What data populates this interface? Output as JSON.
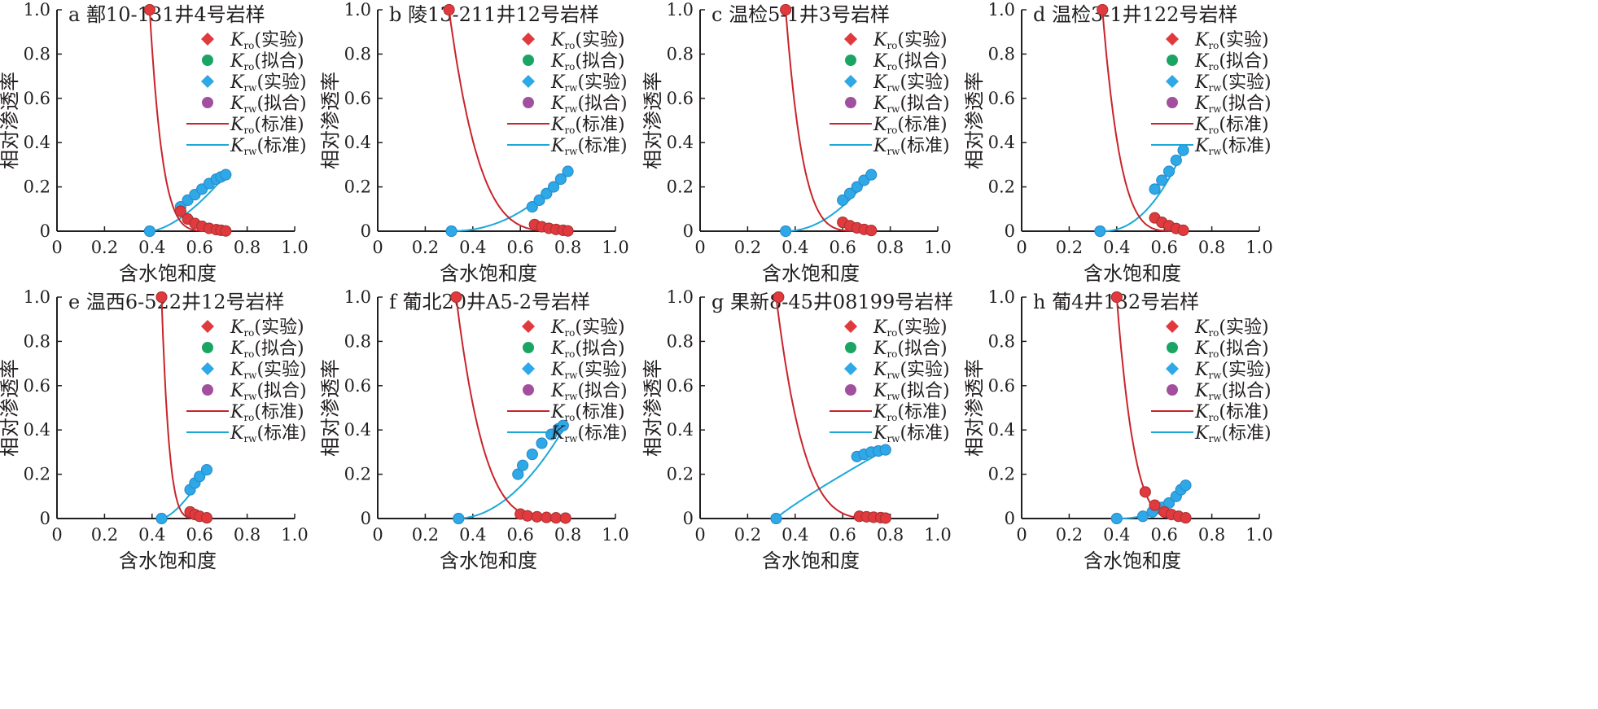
{
  "figure": {
    "xlabel": "含水饱和度",
    "ylabel": "相对渗透率",
    "xticks": [
      "0",
      "0.2",
      "0.4",
      "0.6",
      "0.8",
      "1.0"
    ],
    "yticks": [
      "0",
      "0.2",
      "0.4",
      "0.6",
      "0.8",
      "1.0"
    ],
    "legend": [
      {
        "sym": "K",
        "sub": "ro",
        "note": "(实验)",
        "kind": "diamond",
        "color": "#e03a3e"
      },
      {
        "sym": "K",
        "sub": "ro",
        "note": "(拟合)",
        "kind": "circle",
        "color": "#1aa564"
      },
      {
        "sym": "K",
        "sub": "rw",
        "note": "(实验)",
        "kind": "diamond",
        "color": "#2ea8e6"
      },
      {
        "sym": "K",
        "sub": "rw",
        "note": "(拟合)",
        "kind": "circle",
        "color": "#a24f9e"
      },
      {
        "sym": "K",
        "sub": "ro",
        "note": "(标准)",
        "kind": "line",
        "color": "#c8242b"
      },
      {
        "sym": "K",
        "sub": "rw",
        "note": "(标准)",
        "kind": "line",
        "color": "#1ba8d9"
      }
    ]
  },
  "chart_data": [
    {
      "type": "scatter",
      "title": "a 鄯10-131井4号岩样",
      "xlabel": "含水饱和度",
      "ylabel": "相对渗透率",
      "xlim": [
        0,
        1
      ],
      "ylim": [
        0,
        1
      ],
      "swi": 0.39,
      "sor_end": 0.71,
      "no": 6,
      "nw": 1.6,
      "krw_end": 0.255,
      "kro_points": [
        [
          0.39,
          1.0
        ],
        [
          0.52,
          0.09
        ],
        [
          0.55,
          0.055
        ],
        [
          0.58,
          0.035
        ],
        [
          0.61,
          0.022
        ],
        [
          0.64,
          0.013
        ],
        [
          0.67,
          0.007
        ],
        [
          0.69,
          0.004
        ],
        [
          0.71,
          0.001
        ]
      ],
      "krw_points": [
        [
          0.39,
          0.0
        ],
        [
          0.52,
          0.11
        ],
        [
          0.55,
          0.14
        ],
        [
          0.58,
          0.165
        ],
        [
          0.61,
          0.19
        ],
        [
          0.64,
          0.215
        ],
        [
          0.67,
          0.235
        ],
        [
          0.69,
          0.245
        ],
        [
          0.71,
          0.255
        ]
      ]
    },
    {
      "type": "scatter",
      "title": "b 陵13-211井12号岩样",
      "xlabel": "含水饱和度",
      "ylabel": "相对渗透率",
      "xlim": [
        0,
        1
      ],
      "ylim": [
        0,
        1
      ],
      "swi": 0.3,
      "sor_end": 0.8,
      "no": 4,
      "nw": 2.2,
      "krw_end": 0.27,
      "kro_points": [
        [
          0.3,
          1.0
        ],
        [
          0.66,
          0.03
        ],
        [
          0.69,
          0.02
        ],
        [
          0.72,
          0.013
        ],
        [
          0.75,
          0.008
        ],
        [
          0.78,
          0.004
        ],
        [
          0.8,
          0.001
        ]
      ],
      "krw_points": [
        [
          0.31,
          0.0
        ],
        [
          0.65,
          0.11
        ],
        [
          0.68,
          0.14
        ],
        [
          0.71,
          0.17
        ],
        [
          0.74,
          0.2
        ],
        [
          0.77,
          0.235
        ],
        [
          0.8,
          0.27
        ]
      ]
    },
    {
      "type": "scatter",
      "title": "c 温检5-1井3号岩样",
      "xlabel": "含水饱和度",
      "ylabel": "相对渗透率",
      "xlim": [
        0,
        1
      ],
      "ylim": [
        0,
        1
      ],
      "swi": 0.36,
      "sor_end": 0.72,
      "no": 5,
      "nw": 2.0,
      "krw_end": 0.255,
      "kro_points": [
        [
          0.36,
          1.0
        ],
        [
          0.6,
          0.04
        ],
        [
          0.63,
          0.025
        ],
        [
          0.66,
          0.015
        ],
        [
          0.69,
          0.008
        ],
        [
          0.72,
          0.003
        ]
      ],
      "krw_points": [
        [
          0.36,
          0.0
        ],
        [
          0.6,
          0.14
        ],
        [
          0.63,
          0.17
        ],
        [
          0.66,
          0.2
        ],
        [
          0.69,
          0.23
        ],
        [
          0.72,
          0.255
        ]
      ]
    },
    {
      "type": "scatter",
      "title": "d 温检3-1井122号岩样",
      "xlabel": "含水饱和度",
      "ylabel": "相对渗透率",
      "xlim": [
        0,
        1
      ],
      "ylim": [
        0,
        1
      ],
      "swi": 0.34,
      "sor_end": 0.68,
      "no": 4.5,
      "nw": 2.2,
      "krw_end": 0.365,
      "kro_points": [
        [
          0.34,
          1.0
        ],
        [
          0.56,
          0.06
        ],
        [
          0.59,
          0.04
        ],
        [
          0.62,
          0.025
        ],
        [
          0.65,
          0.012
        ],
        [
          0.68,
          0.004
        ]
      ],
      "krw_points": [
        [
          0.33,
          0.0
        ],
        [
          0.56,
          0.19
        ],
        [
          0.59,
          0.23
        ],
        [
          0.62,
          0.27
        ],
        [
          0.65,
          0.32
        ],
        [
          0.68,
          0.365
        ]
      ]
    },
    {
      "type": "scatter",
      "title": "e 温西6-522井12号岩样",
      "xlabel": "含水饱和度",
      "ylabel": "相对渗透率",
      "xlim": [
        0,
        1
      ],
      "ylim": [
        0,
        1
      ],
      "swi": 0.44,
      "sor_end": 0.63,
      "no": 6,
      "nw": 1.5,
      "krw_end": 0.22,
      "kro_points": [
        [
          0.44,
          1.0
        ],
        [
          0.56,
          0.03
        ],
        [
          0.58,
          0.018
        ],
        [
          0.6,
          0.01
        ],
        [
          0.63,
          0.003
        ]
      ],
      "krw_points": [
        [
          0.44,
          0.0
        ],
        [
          0.56,
          0.13
        ],
        [
          0.58,
          0.16
        ],
        [
          0.6,
          0.19
        ],
        [
          0.63,
          0.22
        ]
      ]
    },
    {
      "type": "scatter",
      "title": "f 葡北20井A5-2号岩样",
      "xlabel": "含水饱和度",
      "ylabel": "相对渗透率",
      "xlim": [
        0,
        1
      ],
      "ylim": [
        0,
        1
      ],
      "swi": 0.33,
      "sor_end": 0.79,
      "no": 4,
      "nw": 2.0,
      "krw_end": 0.42,
      "kro_points": [
        [
          0.33,
          1.0
        ],
        [
          0.6,
          0.02
        ],
        [
          0.63,
          0.012
        ],
        [
          0.67,
          0.008
        ],
        [
          0.71,
          0.005
        ],
        [
          0.75,
          0.003
        ],
        [
          0.79,
          0.002
        ]
      ],
      "krw_points": [
        [
          0.34,
          0.0
        ],
        [
          0.59,
          0.2
        ],
        [
          0.61,
          0.24
        ],
        [
          0.65,
          0.29
        ],
        [
          0.69,
          0.34
        ],
        [
          0.73,
          0.38
        ],
        [
          0.76,
          0.405
        ],
        [
          0.78,
          0.42
        ]
      ]
    },
    {
      "type": "scatter",
      "title": "g 果新8-45井08199号岩样",
      "xlabel": "含水饱和度",
      "ylabel": "相对渗透率",
      "xlim": [
        0,
        1
      ],
      "ylim": [
        0,
        1
      ],
      "swi": 0.32,
      "sor_end": 0.78,
      "no": 4,
      "nw": 0.9,
      "krw_end": 0.31,
      "kro_points": [
        [
          0.33,
          1.0
        ],
        [
          0.67,
          0.01
        ],
        [
          0.7,
          0.008
        ],
        [
          0.73,
          0.006
        ],
        [
          0.76,
          0.004
        ],
        [
          0.78,
          0.002
        ]
      ],
      "krw_points": [
        [
          0.32,
          0.0
        ],
        [
          0.66,
          0.28
        ],
        [
          0.69,
          0.29
        ],
        [
          0.72,
          0.3
        ],
        [
          0.75,
          0.305
        ],
        [
          0.78,
          0.31
        ]
      ]
    },
    {
      "type": "scatter",
      "title": "h 葡4井132号岩样",
      "xlabel": "含水饱和度",
      "ylabel": "相对渗透率",
      "xlim": [
        0,
        1
      ],
      "ylim": [
        0,
        1
      ],
      "swi": 0.4,
      "sor_end": 0.69,
      "no": 4,
      "nw": 2.5,
      "krw_end": 0.15,
      "kro_points": [
        [
          0.4,
          1.0
        ],
        [
          0.52,
          0.12
        ],
        [
          0.56,
          0.06
        ],
        [
          0.6,
          0.03
        ],
        [
          0.63,
          0.018
        ],
        [
          0.66,
          0.01
        ],
        [
          0.69,
          0.003
        ]
      ],
      "krw_points": [
        [
          0.4,
          0.0
        ],
        [
          0.51,
          0.01
        ],
        [
          0.55,
          0.03
        ],
        [
          0.59,
          0.05
        ],
        [
          0.62,
          0.07
        ],
        [
          0.65,
          0.1
        ],
        [
          0.67,
          0.13
        ],
        [
          0.69,
          0.15
        ]
      ]
    }
  ]
}
